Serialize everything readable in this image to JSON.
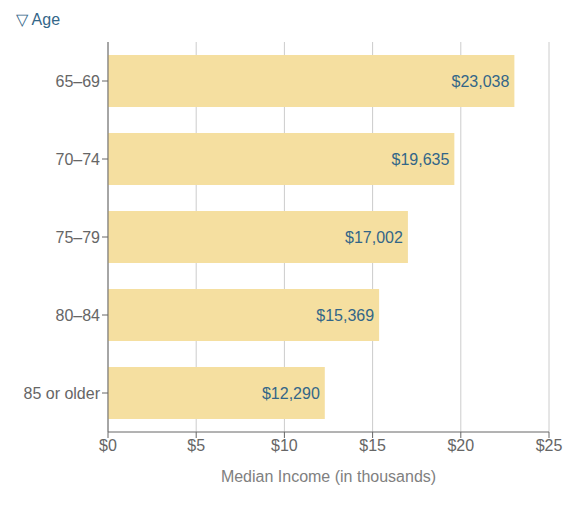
{
  "chart_data": {
    "type": "bar",
    "title": "▽ Age",
    "orientation": "horizontal",
    "categories": [
      "65–69",
      "70–74",
      "75–79",
      "80–84",
      "85 or older"
    ],
    "values": [
      23.038,
      19.635,
      17.002,
      15.369,
      12.29
    ],
    "value_labels": [
      "$23,038",
      "$19,635",
      "$17,002",
      "$15,369",
      "$12,290"
    ],
    "data_labels": true,
    "color": "#F5DFA0",
    "xlabel": "Median Income (in thousands)",
    "xlim": [
      0,
      25
    ],
    "xticks": [
      {
        "value": 0,
        "label": "$0"
      },
      {
        "value": 5,
        "label": "$5"
      },
      {
        "value": 10,
        "label": "$10"
      },
      {
        "value": 15,
        "label": "$15"
      },
      {
        "value": 20,
        "label": "$20"
      },
      {
        "value": 25,
        "label": "$25"
      }
    ],
    "grid": true
  }
}
